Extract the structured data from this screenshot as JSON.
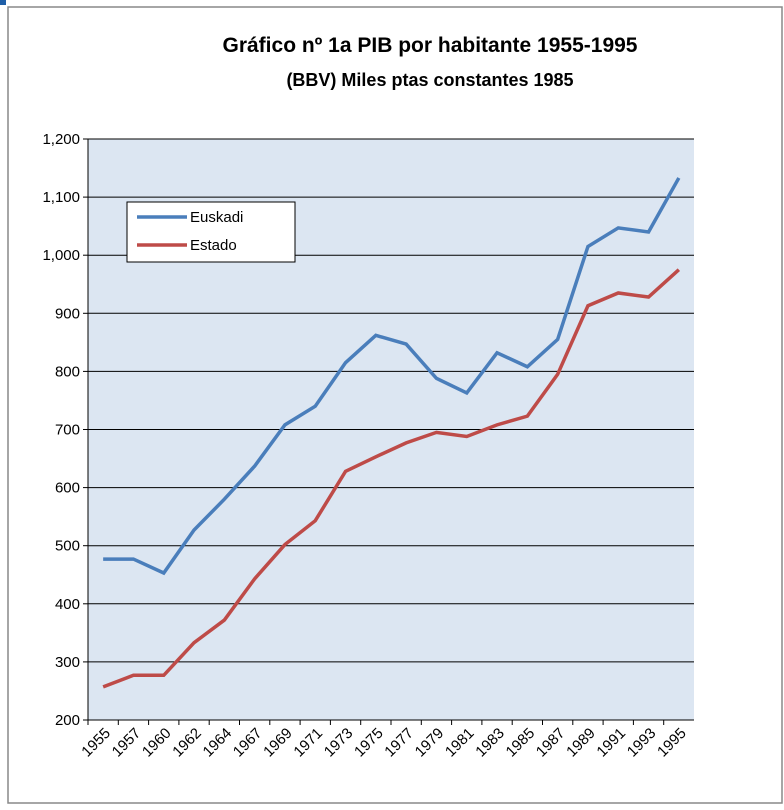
{
  "chart_data": {
    "type": "line",
    "title": "Gráfico nº 1a PIB por habitante 1955-1995",
    "subtitle": "(BBV) Miles ptas constantes 1985",
    "categories": [
      "1955",
      "1957",
      "1960",
      "1962",
      "1964",
      "1967",
      "1969",
      "1971",
      "1973",
      "1975",
      "1977",
      "1979",
      "1981",
      "1983",
      "1985",
      "1987",
      "1989",
      "1991",
      "1993",
      "1995"
    ],
    "series": [
      {
        "name": "Euskadi",
        "color": "#4a7ebb",
        "values": [
          477,
          477,
          453,
          527,
          580,
          637,
          708,
          740,
          815,
          862,
          847,
          788,
          763,
          832,
          808,
          855,
          1015,
          1047,
          1040,
          1133
        ]
      },
      {
        "name": "Estado",
        "color": "#be4b48",
        "values": [
          257,
          277,
          277,
          333,
          372,
          443,
          502,
          543,
          628,
          653,
          677,
          695,
          688,
          708,
          723,
          795,
          913,
          935,
          928,
          975
        ]
      }
    ],
    "ylim": [
      200,
      1200
    ],
    "yticks": [
      200,
      300,
      400,
      500,
      600,
      700,
      800,
      900,
      {
        "value": 1000,
        "label": "1,000"
      },
      {
        "value": 1100,
        "label": "1,100"
      },
      {
        "value": 1200,
        "label": "1,200"
      }
    ],
    "grid": true,
    "legend": "upper left"
  }
}
